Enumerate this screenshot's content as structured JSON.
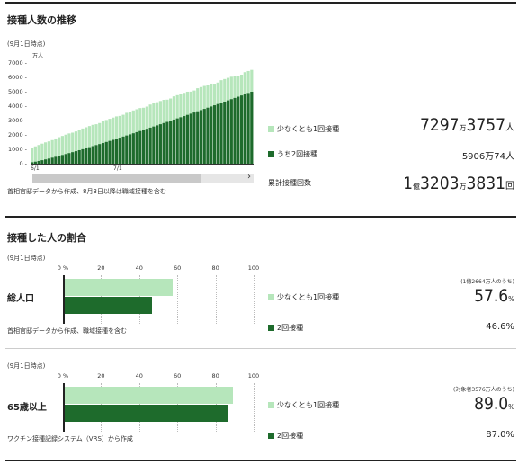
{
  "colors": {
    "first_dose": "#b6e6bb",
    "second_dose": "#1e6b2c"
  },
  "section1": {
    "title": "接種人数の推移",
    "asof": "(9月1日時点)",
    "source": "首相官邸データから作成、8月3日以降は職域接種を含む",
    "scroll_right": "›",
    "legend_first": "少なくとも1回接種",
    "legend_second": "うち2回接種",
    "total_label": "累計接種回数",
    "first": {
      "man_num": "7297",
      "man_unit": "万",
      "num": "3757",
      "unit": "人"
    },
    "second": {
      "text": "5906万74人"
    },
    "total": {
      "oku_num": "1",
      "oku_unit": "億",
      "man_num": "3203",
      "man_unit": "万",
      "num": "3831",
      "unit": "回"
    }
  },
  "chart_data": [
    {
      "type": "bar",
      "y_unit": "万人",
      "ylim": [
        0,
        7000
      ],
      "yticks": [
        "7000",
        "6000",
        "5000",
        "4000",
        "3000",
        "2000",
        "1000",
        "0"
      ],
      "xticks": [
        "6/1",
        "7/1"
      ],
      "series": [
        {
          "name": "少なくとも1回接種",
          "start": 1100,
          "end": 6520
        },
        {
          "name": "うち2回接種",
          "start": 100,
          "end": 5000
        }
      ],
      "bar_count": 66
    },
    {
      "type": "bar",
      "orientation": "horizontal",
      "xlim": [
        0,
        100
      ],
      "xticks": [
        "0",
        "20",
        "40",
        "60",
        "80",
        "100"
      ],
      "categories": [
        "総人口"
      ],
      "series": [
        {
          "name": "少なくとも1回接種",
          "values": [
            57.6
          ]
        },
        {
          "name": "2回接種",
          "values": [
            46.6
          ]
        }
      ]
    },
    {
      "type": "bar",
      "orientation": "horizontal",
      "xlim": [
        0,
        100
      ],
      "xticks": [
        "0",
        "20",
        "40",
        "60",
        "80",
        "100"
      ],
      "categories": [
        "65歳以上"
      ],
      "series": [
        {
          "name": "少なくとも1回接種",
          "values": [
            89.0
          ]
        },
        {
          "name": "2回接種",
          "values": [
            87.0
          ]
        }
      ]
    }
  ],
  "section2": {
    "title": "接種した人の割合",
    "percent_sign": "%",
    "pop": {
      "asof": "(9月1日時点)",
      "category": "総人口",
      "source": "首相官邸データから作成、職域接種を含む",
      "basis": "(1億2664万人のうち)",
      "legend_first": "少なくとも1回接種",
      "legend_second": "2回接種",
      "first_num": "57.6",
      "first_unit": "%",
      "second_text": "46.6%"
    },
    "elderly": {
      "asof": "(9月1日時点)",
      "category": "65歳以上",
      "source": "ワクチン接種記録システム（VRS）から作成",
      "basis": "(対象者3576万人のうち)",
      "legend_first": "少なくとも1回接種",
      "legend_second": "2回接種",
      "first_num": "89.0",
      "first_unit": "%",
      "second_text": "87.0%"
    }
  }
}
